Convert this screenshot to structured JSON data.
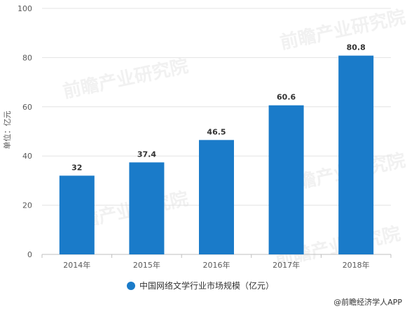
{
  "chart_data": {
    "type": "bar",
    "categories": [
      "2014年",
      "2015年",
      "2016年",
      "2017年",
      "2018年"
    ],
    "series": [
      {
        "name": "中国网络文学行业市场规模（亿元）",
        "values": [
          32,
          37.4,
          46.5,
          60.6,
          80.8
        ],
        "color": "#1a7bc9"
      }
    ],
    "data_labels": [
      "32",
      "37.4",
      "46.5",
      "60.6",
      "80.8"
    ],
    "ylabel": "单位：亿元",
    "xlabel": "",
    "ylim": [
      0,
      100
    ],
    "yticks": [
      0,
      20,
      40,
      60,
      80,
      100
    ],
    "grid": true,
    "legend": "bottom-center"
  },
  "watermark": {
    "text": "前瞻产业研究院"
  },
  "credit": "@前瞻经济学人APP"
}
